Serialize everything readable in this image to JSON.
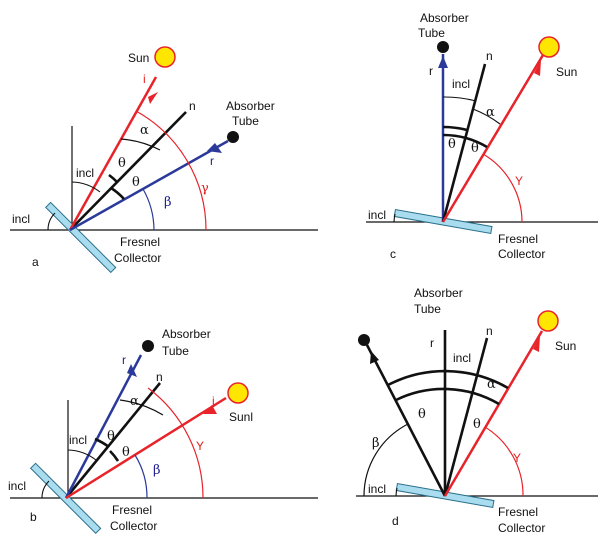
{
  "colors": {
    "incident_ray": "#e8232a",
    "reflected_ray": "#2b3a9a",
    "normal": "#111111",
    "sun_fill": "#ffe600",
    "sun_stroke": "#e8232a",
    "collector_fill": "#a8dcee",
    "collector_stroke": "#2a6f8a",
    "tube": "#111111"
  },
  "panels": [
    {
      "id": "a",
      "panel_label": "a",
      "sun_label": "Sun",
      "tube_label": "Absorber\nTube",
      "collector_label": "Fresnel\nCollector",
      "incl_upper": "incl",
      "incl_lower": "incl",
      "theta_1": "θ",
      "theta_2": "θ",
      "alpha": "α",
      "beta": "β",
      "gamma": "γ",
      "n_label": "n",
      "i_label": "i",
      "r_label": "r"
    },
    {
      "id": "b",
      "panel_label": "b",
      "sun_label": "Sunl",
      "tube_label": "Absorber\nTube",
      "collector_label": "Fresnel\nCollector",
      "incl_upper": "incl",
      "incl_lower": "incl",
      "theta_1": "θ",
      "theta_2": "θ",
      "alpha": "α",
      "beta": "β",
      "gamma": "Y",
      "n_label": "n",
      "i_label": "i",
      "r_label": "r"
    },
    {
      "id": "c",
      "panel_label": "c",
      "sun_label": "Sun",
      "tube_label": "Absorber\nTube",
      "collector_label": "Fresnel\nCollector",
      "incl_upper": "incl",
      "incl_lower": "incl",
      "theta_1": "θ",
      "theta_2": "θ",
      "alpha": "α",
      "gamma": "Y",
      "n_label": "n",
      "r_label": "r"
    },
    {
      "id": "d",
      "panel_label": "d",
      "sun_label": "Sun",
      "tube_label": "Absorber\nTube",
      "collector_label": "Fresnel\nCollector",
      "incl_upper": "incl",
      "incl_lower": "incl",
      "theta_1": "θ",
      "theta_2": "θ",
      "alpha": "α",
      "beta": "β",
      "gamma": "Y",
      "n_label": "n",
      "r_label": "r"
    }
  ]
}
